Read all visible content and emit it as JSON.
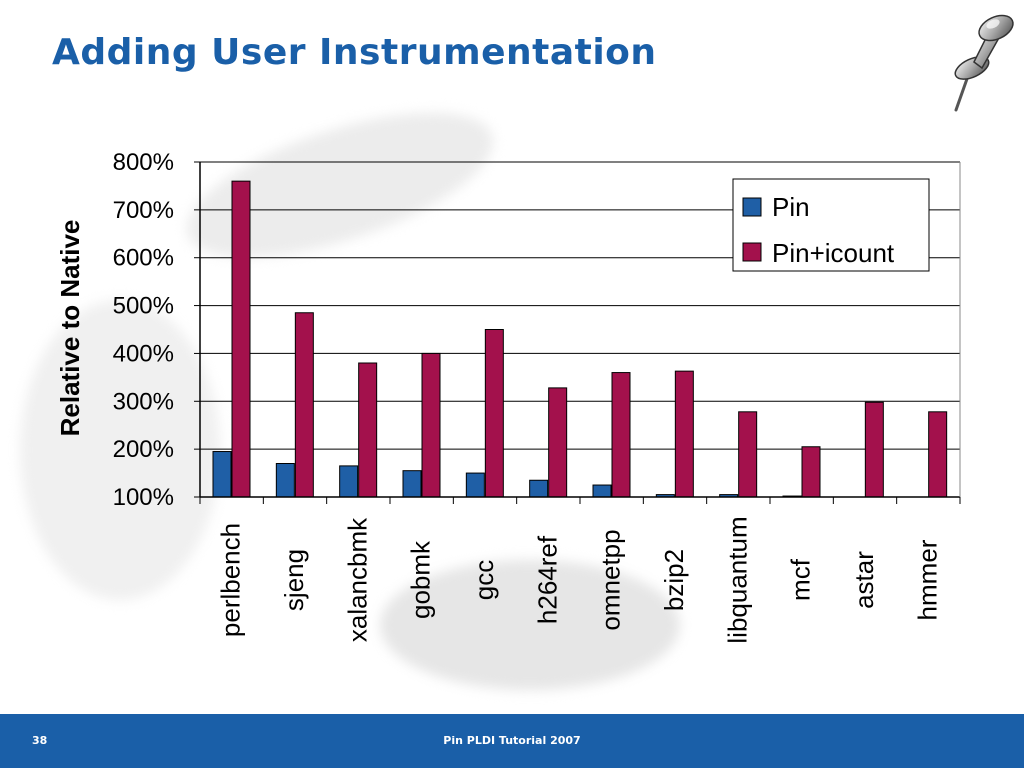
{
  "slide": {
    "title": "Adding User Instrumentation",
    "page_number": "38",
    "footer_text": "Pin PLDI Tutorial 2007",
    "title_color": "#1a5fa8",
    "footer_color": "#1a5fa8",
    "decoration_icon": "pushpin-icon"
  },
  "chart_data": {
    "type": "bar",
    "title": "",
    "xlabel": "",
    "ylabel": "Relative to Native",
    "categories": [
      "perlbench",
      "sjeng",
      "xalancbmk",
      "gobmk",
      "gcc",
      "h264ref",
      "omnetpp",
      "bzip2",
      "libquantum",
      "mcf",
      "astar",
      "hmmer"
    ],
    "series": [
      {
        "name": "Pin",
        "color": "#1f5fa6",
        "values": [
          195,
          170,
          165,
          155,
          150,
          135,
          125,
          105,
          105,
          102,
          100,
          100
        ]
      },
      {
        "name": "Pin+icount",
        "color": "#a3114c",
        "values": [
          760,
          485,
          380,
          400,
          450,
          328,
          360,
          363,
          278,
          205,
          298,
          278
        ]
      }
    ],
    "ylim": [
      100,
      800
    ],
    "yticks": [
      "100%",
      "200%",
      "300%",
      "400%",
      "500%",
      "600%",
      "700%",
      "800%"
    ],
    "grid": true,
    "legend_position": "top-right"
  }
}
